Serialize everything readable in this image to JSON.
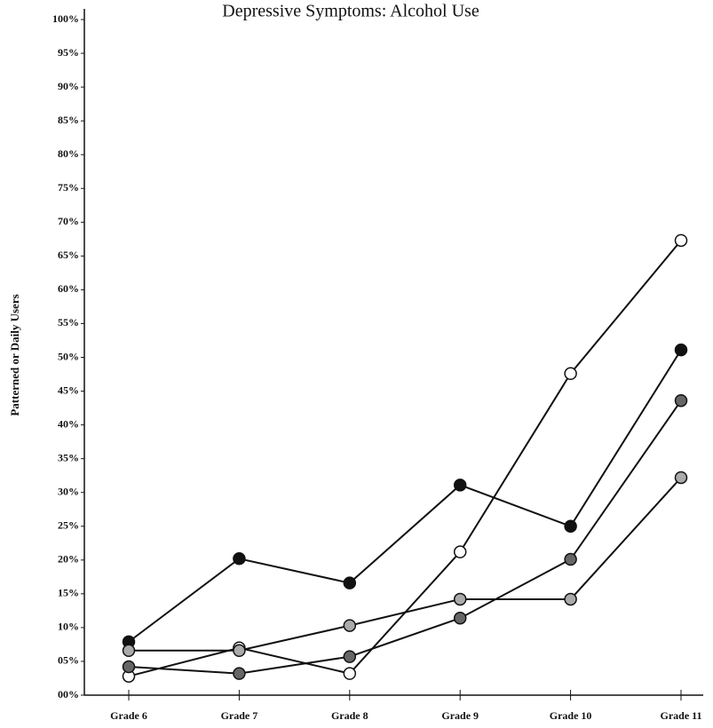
{
  "chart_data": {
    "type": "line",
    "title": "Depressive Symptoms:  Alcohol Use",
    "y_label": "Patterned or Daily Users",
    "categories": [
      "Grade 6",
      "Grade 7",
      "Grade 8",
      "Grade 9",
      "Grade 10",
      "Grade 11"
    ],
    "series": [
      {
        "color": "#ffffff",
        "values": [
          2.8,
          7.0,
          3.2,
          21.2,
          47.6,
          67.3
        ]
      },
      {
        "color": "#111111",
        "values": [
          7.9,
          20.2,
          16.6,
          31.1,
          25.0,
          51.1
        ]
      },
      {
        "color": "#666666",
        "values": [
          4.2,
          3.2,
          5.7,
          11.4,
          20.1,
          43.6
        ]
      },
      {
        "color": "#aaaaaa",
        "values": [
          6.6,
          6.6,
          10.3,
          14.2,
          14.2,
          32.2
        ]
      }
    ],
    "ylim": [
      0,
      100
    ],
    "yticks": [
      {
        "value": 0,
        "label": "00%"
      },
      {
        "value": 5,
        "label": "05%"
      },
      {
        "value": 10,
        "label": "10%"
      },
      {
        "value": 15,
        "label": "15%"
      },
      {
        "value": 20,
        "label": "20%"
      },
      {
        "value": 25,
        "label": "25%"
      },
      {
        "value": 30,
        "label": "30%"
      },
      {
        "value": 35,
        "label": "35%"
      },
      {
        "value": 40,
        "label": "40%"
      },
      {
        "value": 45,
        "label": "45%"
      },
      {
        "value": 50,
        "label": "50%"
      },
      {
        "value": 55,
        "label": "55%"
      },
      {
        "value": 60,
        "label": "60%"
      },
      {
        "value": 65,
        "label": "65%"
      },
      {
        "value": 70,
        "label": "70%"
      },
      {
        "value": 75,
        "label": "75%"
      },
      {
        "value": 80,
        "label": "80%"
      },
      {
        "value": 85,
        "label": "85%"
      },
      {
        "value": 90,
        "label": "90%"
      },
      {
        "value": 95,
        "label": "95%"
      },
      {
        "value": 100,
        "label": "100%"
      }
    ],
    "grid": false
  }
}
